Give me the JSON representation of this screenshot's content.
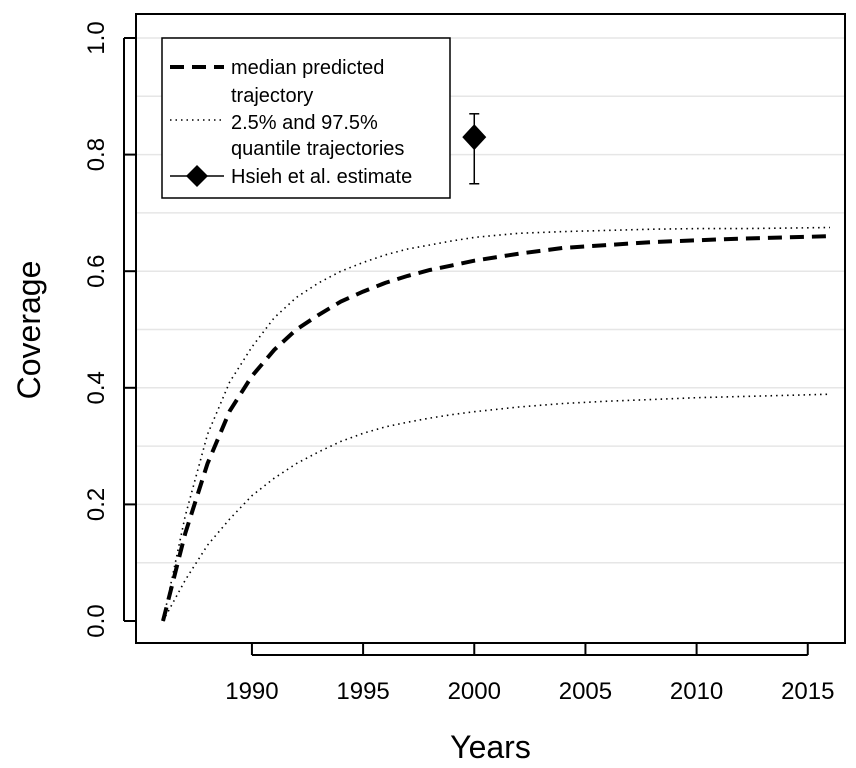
{
  "chart_data": {
    "type": "line",
    "xlabel": "Years",
    "ylabel": "Coverage",
    "xlim": [
      1985,
      2017
    ],
    "ylim": [
      0,
      1.0
    ],
    "x_ticks": [
      1990,
      1995,
      2000,
      2005,
      2010,
      2015
    ],
    "x_tick_labels": [
      "1990",
      "1995",
      "2000",
      "2005",
      "2010",
      "2015"
    ],
    "y_ticks": [
      0,
      0.2,
      0.4,
      0.6,
      0.8,
      1.0
    ],
    "y_tick_labels": [
      "0.0",
      "0.2",
      "0.4",
      "0.6",
      "0.8",
      "1.0"
    ],
    "grid": "horizontal",
    "legend_position": "top-left",
    "legend": [
      {
        "label_lines": [
          "median predicted",
          "trajectory"
        ],
        "style": "dashed"
      },
      {
        "label_lines": [
          "2.5% and 97.5%",
          "quantile trajectories"
        ],
        "style": "dotted"
      },
      {
        "label_lines": [
          "Hsieh et al. estimate"
        ],
        "style": "diamond"
      }
    ],
    "series": [
      {
        "style": "dashed",
        "x": [
          1986,
          1987,
          1988,
          1989,
          1990,
          1991,
          1992,
          1993,
          1994,
          1995,
          1996,
          1997,
          1998,
          1999,
          2000,
          2002,
          2004,
          2006,
          2008,
          2010,
          2012,
          2014,
          2016
        ],
        "y": [
          0.0,
          0.15,
          0.27,
          0.36,
          0.42,
          0.465,
          0.5,
          0.525,
          0.548,
          0.565,
          0.58,
          0.592,
          0.602,
          0.61,
          0.618,
          0.63,
          0.64,
          0.645,
          0.65,
          0.653,
          0.656,
          0.658,
          0.66
        ]
      },
      {
        "style": "dotted",
        "x": [
          1986,
          1987,
          1988,
          1989,
          1990,
          1991,
          1992,
          1993,
          1994,
          1995,
          1996,
          1997,
          1998,
          1999,
          2000,
          2002,
          2004,
          2006,
          2008,
          2010,
          2012,
          2014,
          2016
        ],
        "y": [
          0.0,
          0.18,
          0.32,
          0.41,
          0.47,
          0.52,
          0.555,
          0.58,
          0.6,
          0.615,
          0.628,
          0.638,
          0.645,
          0.652,
          0.658,
          0.665,
          0.668,
          0.67,
          0.672,
          0.673,
          0.673,
          0.674,
          0.675
        ]
      },
      {
        "style": "dotted",
        "x": [
          1986,
          1987,
          1988,
          1989,
          1990,
          1991,
          1992,
          1993,
          1994,
          1995,
          1996,
          1997,
          1998,
          1999,
          2000,
          2002,
          2004,
          2006,
          2008,
          2010,
          2012,
          2014,
          2016
        ],
        "y": [
          0.0,
          0.07,
          0.13,
          0.175,
          0.215,
          0.245,
          0.27,
          0.29,
          0.308,
          0.322,
          0.333,
          0.341,
          0.348,
          0.354,
          0.359,
          0.367,
          0.373,
          0.377,
          0.38,
          0.383,
          0.385,
          0.387,
          0.389
        ]
      }
    ],
    "estimate": {
      "x": 2000,
      "y": 0.83,
      "lower": 0.75,
      "upper": 0.87
    }
  }
}
